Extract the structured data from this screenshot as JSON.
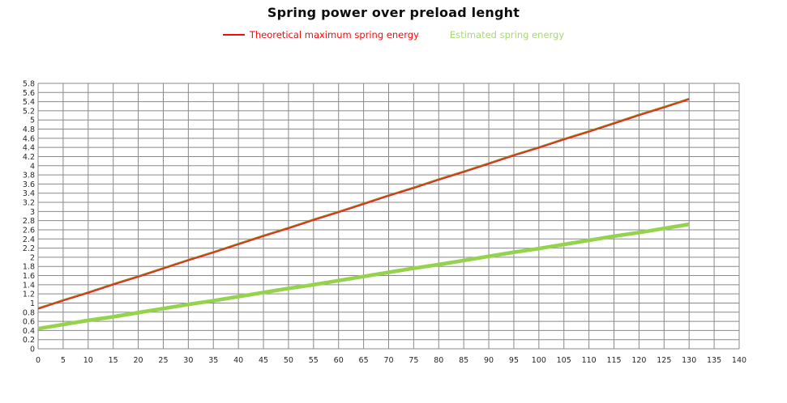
{
  "chart_data": {
    "type": "line",
    "title": "Spring power over preload lenght",
    "xlabel": "",
    "ylabel": "",
    "xlim": [
      0,
      140
    ],
    "ylim": [
      0,
      5.8
    ],
    "x_tick_step": 5,
    "y_tick_step": 0.2,
    "grid": true,
    "legend_position": "top",
    "x_ticks": [
      "0",
      "5",
      "10",
      "15",
      "20",
      "25",
      "30",
      "35",
      "40",
      "45",
      "50",
      "55",
      "60",
      "65",
      "70",
      "75",
      "80",
      "85",
      "90",
      "95",
      "100",
      "105",
      "110",
      "115",
      "120",
      "125",
      "130",
      "135",
      "140"
    ],
    "y_ticks": [
      "0",
      "0.2",
      "0.4",
      "0.6",
      "0.8",
      "1",
      "1.2",
      "1.4",
      "1.6",
      "1.8",
      "2",
      "2.2",
      "2.4",
      "2.6",
      "2.8",
      "3",
      "3.2",
      "3.4",
      "3.6",
      "3.8",
      "4",
      "4.2",
      "4.4",
      "4.6",
      "4.8",
      "5",
      "5.2",
      "5.4",
      "5.6",
      "5.8"
    ],
    "x": [
      0,
      5,
      10,
      15,
      20,
      25,
      30,
      35,
      40,
      45,
      50,
      55,
      60,
      65,
      70,
      75,
      80,
      85,
      90,
      95,
      100,
      105,
      110,
      115,
      120,
      125,
      130
    ],
    "series": [
      {
        "name": "Theoretical maximum spring energy",
        "slug": "theoretical-maximum-spring-energy",
        "color": "#e4291b",
        "values": [
          0.87,
          1.05,
          1.22,
          1.4,
          1.57,
          1.75,
          1.93,
          2.1,
          2.28,
          2.46,
          2.63,
          2.81,
          2.98,
          3.16,
          3.34,
          3.51,
          3.69,
          3.86,
          4.04,
          4.22,
          4.39,
          4.57,
          4.74,
          4.92,
          5.1,
          5.27,
          5.45
        ]
      },
      {
        "name": "Estimated spring energy",
        "slug": "estimated-spring-energy",
        "color": "#95d34f",
        "values": [
          0.44,
          0.53,
          0.62,
          0.7,
          0.79,
          0.88,
          0.97,
          1.05,
          1.14,
          1.23,
          1.32,
          1.4,
          1.49,
          1.58,
          1.67,
          1.76,
          1.84,
          1.93,
          2.02,
          2.11,
          2.19,
          2.28,
          2.37,
          2.46,
          2.54,
          2.63,
          2.72
        ]
      }
    ]
  },
  "legend": {
    "entries": [
      {
        "label": "Theoretical maximum spring energy",
        "color": "#f20d0d",
        "swatch": true
      },
      {
        "label": "Estimated spring energy",
        "color": "#a6d971",
        "swatch": false
      }
    ]
  },
  "colors": {
    "background": "#ffffff",
    "gridline": "#898989",
    "axis_text": "#262626",
    "title_text": "#0d0d0d",
    "trend_overlay": "#9a8419"
  }
}
